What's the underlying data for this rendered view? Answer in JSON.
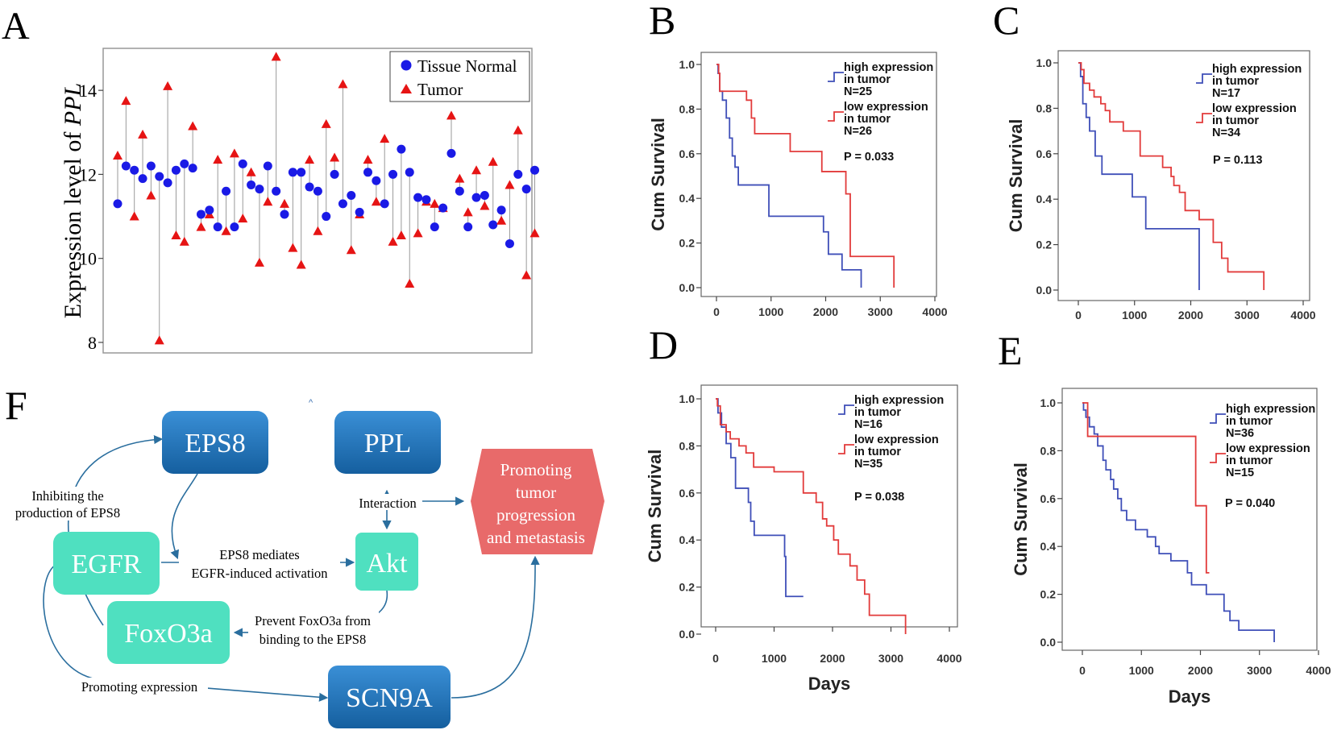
{
  "panel_labels": {
    "a": "A",
    "b": "B",
    "c": "C",
    "d": "D",
    "e": "E",
    "f": "F"
  },
  "colors": {
    "normal": "#1a1ae6",
    "tumor": "#e61414",
    "high": "#3f4fb8",
    "low": "#e23b3b",
    "box_blue": "#1f72b8",
    "box_teal": "#4fe0c0",
    "box_red": "#e86a6a",
    "arrow": "#2a6e9e"
  },
  "chart_data": [
    {
      "id": "A",
      "type": "scatter",
      "title": "",
      "xlabel": "",
      "ylabel_prefix": "Expression level of ",
      "ylabel_gene": "PPL",
      "ylim": [
        8,
        15
      ],
      "yticks": [
        "8",
        "10",
        "12",
        "14"
      ],
      "legend": [
        "Tissue Normal",
        "Tumor"
      ],
      "legend_position": "top-right",
      "series": [
        {
          "name": "Tissue Normal",
          "values": [
            11.3,
            12.2,
            12.1,
            11.9,
            12.2,
            11.95,
            11.8,
            12.1,
            12.25,
            12.15,
            11.05,
            11.15,
            10.75,
            11.6,
            10.75,
            12.25,
            11.75,
            11.65,
            12.2,
            11.6,
            11.05,
            12.05,
            12.05,
            11.7,
            11.6,
            11.0,
            12.0,
            11.3,
            11.5,
            11.1,
            12.05,
            11.85,
            11.3,
            12.0,
            12.6,
            12.05,
            11.45,
            11.4,
            10.75,
            11.2,
            12.5,
            11.6,
            10.75,
            11.45,
            11.5,
            10.8,
            11.15,
            10.35,
            12.0,
            11.65,
            12.1
          ]
        },
        {
          "name": "Tumor",
          "values": [
            12.45,
            13.75,
            11.0,
            12.95,
            11.5,
            8.05,
            14.1,
            10.55,
            10.4,
            13.15,
            10.75,
            11.05,
            12.35,
            10.65,
            12.5,
            10.95,
            12.05,
            9.9,
            11.35,
            14.8,
            11.3,
            10.25,
            9.85,
            12.35,
            10.65,
            13.2,
            12.4,
            14.15,
            10.2,
            11.05,
            12.35,
            11.35,
            12.85,
            10.4,
            10.55,
            9.4,
            10.6,
            11.35,
            11.3,
            11.2,
            13.4,
            11.9,
            11.1,
            12.1,
            11.25,
            12.3,
            10.9,
            11.75,
            13.05,
            9.6,
            10.6
          ]
        }
      ]
    },
    {
      "id": "B",
      "type": "line",
      "xlabel": "",
      "ylabel": "Cum Survival",
      "xlim": [
        0,
        4000
      ],
      "ylim": [
        0,
        1
      ],
      "xticks": [
        "0",
        "1000",
        "2000",
        "3000",
        "4000"
      ],
      "yticks": [
        "0.0",
        "0.2",
        "0.4",
        "0.6",
        "0.8",
        "1.0"
      ],
      "legend_position": "top-right",
      "series": [
        {
          "name": "high expression in tumor",
          "line1": "high expression",
          "line2": "in tumor",
          "n_label": "N=25",
          "x": [
            0,
            30,
            60,
            110,
            180,
            240,
            290,
            340,
            400,
            560,
            960,
            1500,
            1960,
            2050,
            2130,
            2300,
            2500,
            2650,
            2650
          ],
          "y": [
            1.0,
            0.96,
            0.88,
            0.84,
            0.76,
            0.67,
            0.59,
            0.54,
            0.46,
            0.46,
            0.32,
            0.32,
            0.25,
            0.15,
            0.15,
            0.08,
            0.08,
            0.08,
            0.0
          ]
        },
        {
          "name": "low expression in tumor",
          "line1": "low expression",
          "line2": "in tumor",
          "n_label": "N=26",
          "x": [
            0,
            40,
            60,
            480,
            550,
            640,
            700,
            1200,
            1350,
            1720,
            1930,
            2370,
            2450,
            2600,
            3250,
            3250
          ],
          "y": [
            1.0,
            0.96,
            0.88,
            0.88,
            0.84,
            0.76,
            0.69,
            0.69,
            0.61,
            0.61,
            0.52,
            0.42,
            0.14,
            0.14,
            0.14,
            0.0
          ]
        }
      ],
      "p_value": "P = 0.033"
    },
    {
      "id": "C",
      "type": "line",
      "xlabel": "",
      "ylabel": "Cum Survival",
      "xlim": [
        0,
        4000
      ],
      "ylim": [
        0,
        1
      ],
      "xticks": [
        "0",
        "1000",
        "2000",
        "3000",
        "4000"
      ],
      "yticks": [
        "0.0",
        "0.2",
        "0.4",
        "0.6",
        "0.8",
        "1.0"
      ],
      "legend_position": "top-right",
      "series": [
        {
          "name": "high expression in tumor",
          "line1": "high expression",
          "line2": "in tumor",
          "n_label": "N=17",
          "x": [
            0,
            40,
            80,
            140,
            200,
            300,
            420,
            960,
            1200,
            2100,
            2150,
            2150
          ],
          "y": [
            1.0,
            0.94,
            0.82,
            0.76,
            0.7,
            0.59,
            0.51,
            0.41,
            0.27,
            0.27,
            0.27,
            0.0
          ]
        },
        {
          "name": "low expression in tumor",
          "line1": "low expression",
          "line2": "in tumor",
          "n_label": "N=34",
          "x": [
            0,
            50,
            100,
            200,
            280,
            400,
            480,
            560,
            800,
            1100,
            1500,
            1650,
            1700,
            1800,
            1900,
            2150,
            2400,
            2550,
            2660,
            3300,
            3300
          ],
          "y": [
            1.0,
            0.97,
            0.91,
            0.88,
            0.85,
            0.82,
            0.79,
            0.74,
            0.7,
            0.59,
            0.54,
            0.5,
            0.46,
            0.43,
            0.35,
            0.31,
            0.21,
            0.14,
            0.08,
            0.08,
            0.0
          ]
        }
      ],
      "p_value": "P = 0.113"
    },
    {
      "id": "D",
      "type": "line",
      "xlabel": "Days",
      "ylabel": "Cum Survival",
      "xlim": [
        0,
        4000
      ],
      "ylim": [
        0,
        1
      ],
      "xticks": [
        "0",
        "1000",
        "2000",
        "3000",
        "4000"
      ],
      "yticks": [
        "0.0",
        "0.2",
        "0.4",
        "0.6",
        "0.8",
        "1.0"
      ],
      "legend_position": "top-right",
      "series": [
        {
          "name": "high expression in tumor",
          "line1": "high expression",
          "line2": "in tumor",
          "n_label": "N=16",
          "x": [
            0,
            40,
            100,
            180,
            260,
            340,
            400,
            560,
            600,
            660,
            1180,
            1200,
            1500
          ],
          "y": [
            1.0,
            0.94,
            0.88,
            0.81,
            0.75,
            0.62,
            0.62,
            0.56,
            0.48,
            0.42,
            0.33,
            0.16,
            0.16
          ]
        },
        {
          "name": "low expression in tumor",
          "line1": "low expression",
          "line2": "in tumor",
          "n_label": "N=35",
          "x": [
            0,
            30,
            80,
            180,
            250,
            400,
            520,
            650,
            900,
            1000,
            1500,
            1720,
            1830,
            1900,
            2020,
            2100,
            2300,
            2420,
            2550,
            2630,
            3000,
            3250,
            3250
          ],
          "y": [
            1.0,
            0.97,
            0.89,
            0.86,
            0.83,
            0.8,
            0.77,
            0.71,
            0.71,
            0.69,
            0.6,
            0.56,
            0.49,
            0.46,
            0.4,
            0.34,
            0.29,
            0.23,
            0.17,
            0.08,
            0.08,
            0.08,
            0.0
          ]
        }
      ],
      "p_value": "P = 0.038"
    },
    {
      "id": "E",
      "type": "line",
      "xlabel": "Days",
      "ylabel": "Cum Survival",
      "xlim": [
        0,
        4000
      ],
      "ylim": [
        0,
        1
      ],
      "xticks": [
        "0",
        "1000",
        "2000",
        "3000",
        "4000"
      ],
      "yticks": [
        "0.0",
        "0.2",
        "0.4",
        "0.6",
        "0.8",
        "1.0"
      ],
      "legend_position": "top-right",
      "series": [
        {
          "name": "high expression in tumor",
          "line1": "high expression",
          "line2": "in tumor",
          "n_label": "N=36",
          "x": [
            0,
            20,
            60,
            120,
            200,
            260,
            350,
            400,
            480,
            530,
            600,
            660,
            750,
            900,
            1100,
            1240,
            1300,
            1500,
            1700,
            1780,
            1850,
            2000,
            2100,
            2350,
            2400,
            2500,
            2650,
            3100,
            3250,
            3250
          ],
          "y": [
            1.0,
            0.97,
            0.94,
            0.9,
            0.87,
            0.82,
            0.76,
            0.72,
            0.68,
            0.64,
            0.6,
            0.55,
            0.51,
            0.47,
            0.44,
            0.4,
            0.37,
            0.34,
            0.34,
            0.29,
            0.24,
            0.24,
            0.2,
            0.2,
            0.13,
            0.09,
            0.05,
            0.05,
            0.05,
            0.0
          ]
        },
        {
          "name": "low expression in tumor",
          "line1": "low expression",
          "line2": "in tumor",
          "n_label": "N=15",
          "x": [
            0,
            90,
            1920,
            2100,
            2150
          ],
          "y": [
            1.0,
            0.86,
            0.57,
            0.29,
            0.29
          ]
        }
      ],
      "p_value": "P = 0.040"
    }
  ],
  "diagram": {
    "nodes": {
      "eps8": "EPS8",
      "ppl": "PPL",
      "egfr": "EGFR",
      "akt": "Akt",
      "foxo3a": "FoxO3a",
      "scn9a": "SCN9A",
      "outcome_line1": "Promoting",
      "outcome_line2": "tumor",
      "outcome_line3": "progression",
      "outcome_line4": "and metastasis"
    },
    "labels": {
      "inhibit_line1": "Inhibiting the",
      "inhibit_line2": "production of EPS8",
      "interaction": "Interaction",
      "eps8_mediates_line1": "EPS8 mediates",
      "eps8_mediates_line2": "EGFR-induced activation",
      "prevent_line1": "Prevent FoxO3a from",
      "prevent_line2": "binding to the EPS8",
      "promoting_expression": "Promoting expression",
      "stray_mark": "^"
    }
  }
}
